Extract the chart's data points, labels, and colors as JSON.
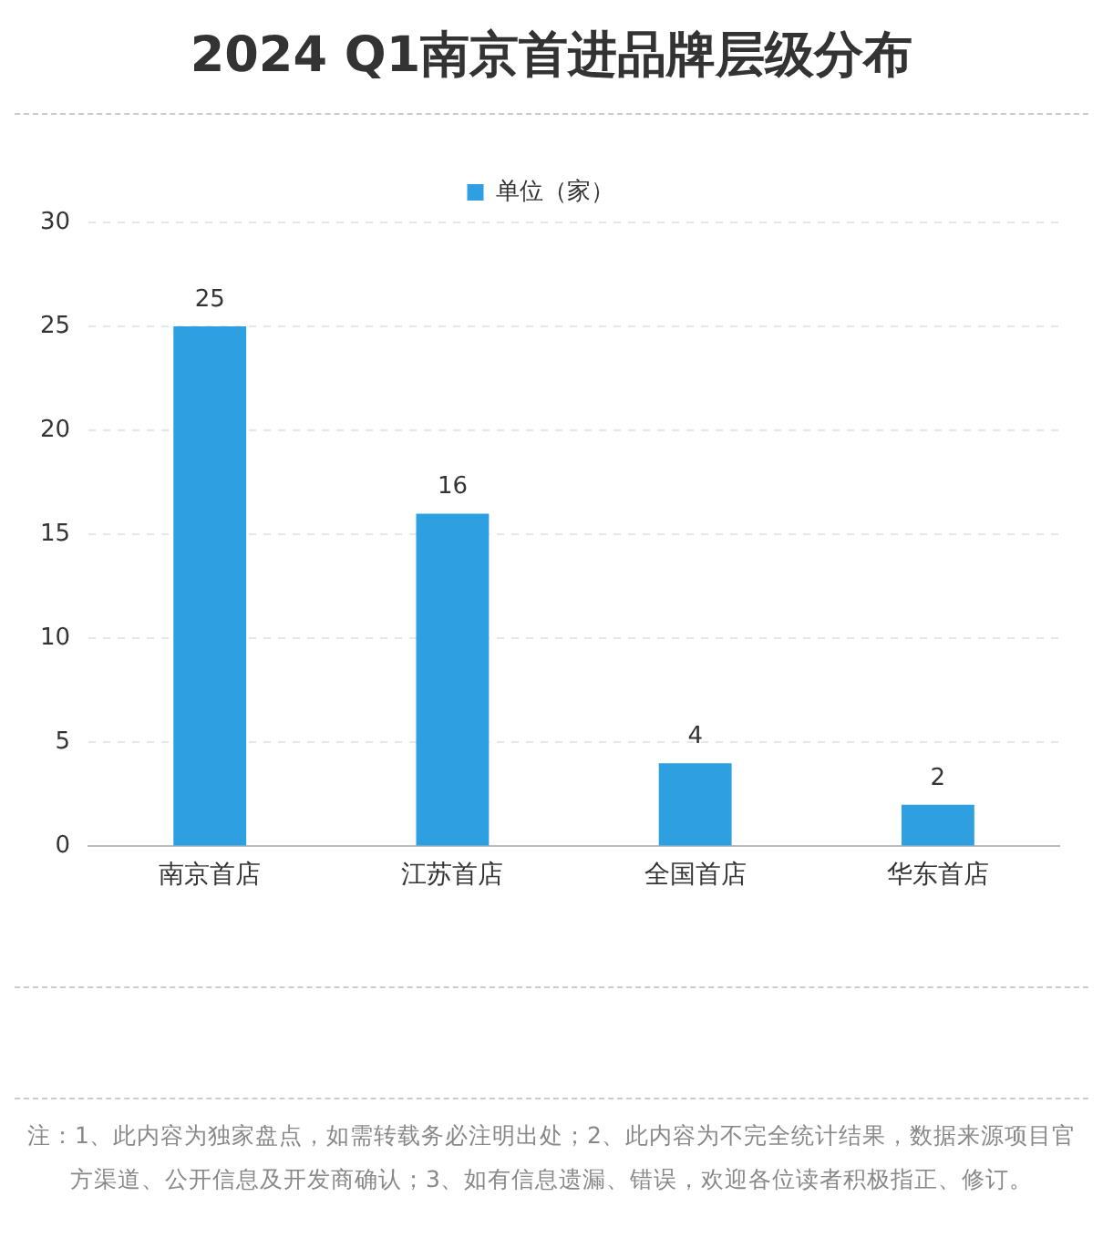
{
  "chart_data": {
    "type": "bar",
    "title": "2024 Q1南京首进品牌层级分布",
    "categories": [
      "南京首店",
      "江苏首店",
      "全国首店",
      "华东首店"
    ],
    "series": [
      {
        "name": "单位（家）",
        "color": "#2e9fe0",
        "values": [
          25,
          16,
          4,
          2
        ]
      }
    ],
    "ylim": [
      0,
      30
    ],
    "yticks": [
      0,
      5,
      10,
      15,
      20,
      25,
      30
    ],
    "grid": "y",
    "legend": "top",
    "data_labels": true,
    "annotations": [
      "注：1、此内容为独家盘点，如需转载务必注明出处；2、此内容为不完全统计结果，数据来源项目官方渠道、公开信息及开发商确认；3、如有信息遗漏、错误，欢迎各位读者积极指正、修订。"
    ]
  }
}
